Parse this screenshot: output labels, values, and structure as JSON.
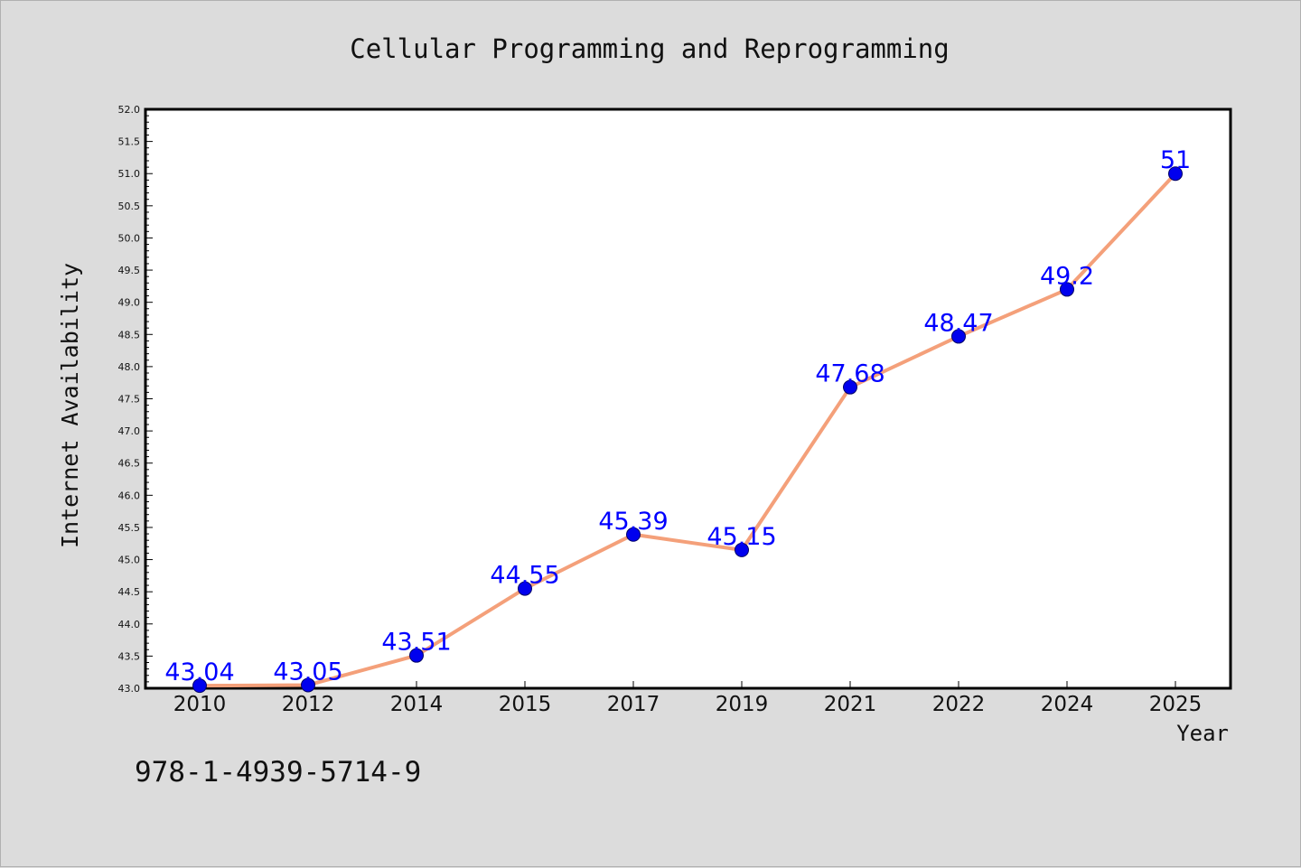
{
  "chart_data": {
    "type": "line",
    "title": "Cellular Programming and Reprogramming",
    "xlabel": "Year",
    "ylabel": "Internet Availability",
    "categories": [
      "2010",
      "2012",
      "2014",
      "2015",
      "2017",
      "2019",
      "2021",
      "2022",
      "2024",
      "2025"
    ],
    "series": [
      {
        "values": [
          43.04,
          43.05,
          43.51,
          44.55,
          45.39,
          45.15,
          47.68,
          48.47,
          49.2,
          51
        ],
        "labels": [
          "43.04",
          "43.05",
          "43.51",
          "44.55",
          "45.39",
          "45.15",
          "47.68",
          "48.47",
          "49.2",
          "51"
        ]
      }
    ],
    "ylim": [
      43.0,
      52.0
    ],
    "yticks": [
      "43.0",
      "43.5",
      "44.0",
      "44.5",
      "45.0",
      "45.5",
      "46.0",
      "46.5",
      "47.0",
      "47.5",
      "48.0",
      "48.5",
      "49.0",
      "49.5",
      "50.0",
      "50.5",
      "51.0",
      "51.5",
      "52.0"
    ],
    "grid": false,
    "line_color": "#f4a07a",
    "marker_color": "#0000ee",
    "label_color": "#0000ff"
  },
  "footer": {
    "isbn": "978-1-4939-5714-9"
  }
}
